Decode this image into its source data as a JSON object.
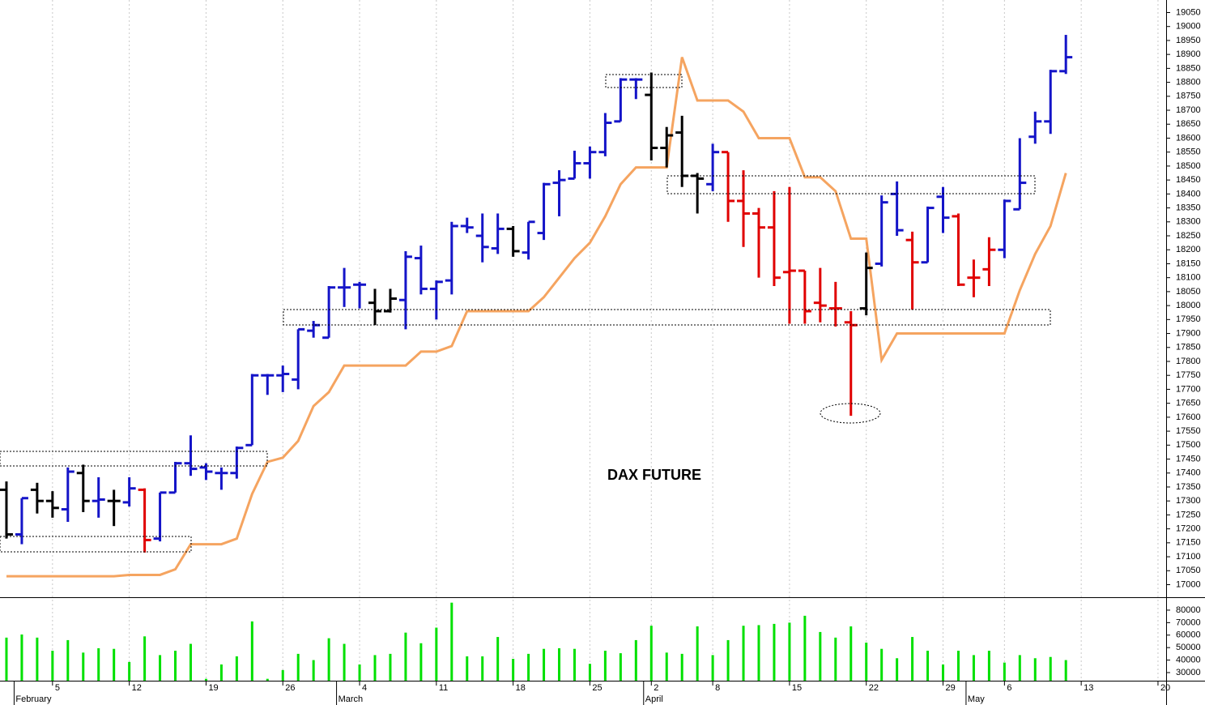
{
  "chart_data": [
    {
      "type": "ohlc",
      "title": "DAX FUTURE",
      "open": [
        17340,
        17180,
        17340,
        17300,
        17270,
        17400,
        17300,
        17300,
        17295,
        17340,
        17165,
        17330,
        17435,
        17420,
        17400,
        17400,
        17500,
        17750,
        17750,
        17735,
        17910,
        17885,
        18065,
        18075,
        18010,
        17980,
        18020,
        18170,
        18060,
        18090,
        18285,
        18250,
        18205,
        18275,
        18190,
        18260,
        18440,
        18455,
        18510,
        18550,
        18660,
        18810,
        18755,
        18565,
        18620,
        18465,
        18435,
        18550,
        18375,
        18330,
        18280,
        18120,
        18125,
        18010,
        17990,
        17940,
        17990,
        18150,
        18400,
        18235,
        18155,
        18390,
        18320,
        18100,
        18130,
        18200,
        18345,
        18605,
        18660,
        18840
      ],
      "high": [
        17370,
        17310,
        17365,
        17335,
        17420,
        17430,
        17385,
        17340,
        17385,
        17345,
        17330,
        17440,
        17535,
        17435,
        17420,
        17495,
        17755,
        17755,
        17785,
        17915,
        17945,
        18070,
        18135,
        18085,
        18060,
        18060,
        18195,
        18215,
        18090,
        18300,
        18315,
        18330,
        18330,
        18285,
        18300,
        18440,
        18485,
        18555,
        18570,
        18690,
        18815,
        18815,
        18835,
        18640,
        18680,
        18475,
        18580,
        18550,
        18485,
        18350,
        18410,
        18425,
        18125,
        18135,
        18085,
        17980,
        18190,
        18395,
        18445,
        18265,
        18355,
        18425,
        18330,
        18165,
        18245,
        18380,
        18600,
        18695,
        18845,
        18970
      ],
      "low": [
        17165,
        17145,
        17255,
        17240,
        17225,
        17260,
        17240,
        17210,
        17280,
        17115,
        17155,
        17330,
        17390,
        17375,
        17340,
        17380,
        17500,
        17680,
        17690,
        17700,
        17885,
        17885,
        17995,
        17990,
        17930,
        17975,
        17915,
        18040,
        17950,
        18040,
        18260,
        18155,
        18185,
        18175,
        18165,
        18235,
        18320,
        18455,
        18455,
        18535,
        18660,
        18740,
        18520,
        18495,
        18425,
        18330,
        18410,
        18300,
        18210,
        18100,
        18070,
        17935,
        17935,
        17940,
        17925,
        17605,
        17965,
        18140,
        18250,
        17985,
        18155,
        18260,
        18070,
        18030,
        18070,
        18170,
        18345,
        18580,
        18615,
        18830
      ],
      "close": [
        17180,
        17310,
        17300,
        17275,
        17405,
        17300,
        17305,
        17300,
        17345,
        17160,
        17330,
        17435,
        17415,
        17405,
        17400,
        17490,
        17750,
        17750,
        17755,
        17915,
        17930,
        18065,
        18065,
        18075,
        17980,
        18025,
        18175,
        18060,
        18085,
        18285,
        18280,
        18210,
        18275,
        18195,
        18300,
        18435,
        18450,
        18510,
        18550,
        18655,
        18810,
        18810,
        18565,
        18610,
        18465,
        18455,
        18550,
        18375,
        18330,
        18280,
        18100,
        18125,
        17980,
        18000,
        17990,
        17930,
        18135,
        18370,
        18270,
        18155,
        18350,
        18315,
        18075,
        18100,
        18200,
        18375,
        18440,
        18660,
        18840,
        18890
      ],
      "bar_colors": [
        "#000000",
        "#1414c8",
        "#000000",
        "#000000",
        "#1414c8",
        "#000000",
        "#1414c8",
        "#000000",
        "#1414c8",
        "#e00000",
        "#1414c8",
        "#1414c8",
        "#1414c8",
        "#1414c8",
        "#1414c8",
        "#1414c8",
        "#1414c8",
        "#1414c8",
        "#1414c8",
        "#1414c8",
        "#1414c8",
        "#1414c8",
        "#1414c8",
        "#1414c8",
        "#000000",
        "#000000",
        "#1414c8",
        "#1414c8",
        "#1414c8",
        "#1414c8",
        "#1414c8",
        "#1414c8",
        "#1414c8",
        "#000000",
        "#1414c8",
        "#1414c8",
        "#1414c8",
        "#1414c8",
        "#1414c8",
        "#1414c8",
        "#1414c8",
        "#1414c8",
        "#000000",
        "#000000",
        "#000000",
        "#000000",
        "#1414c8",
        "#e00000",
        "#e00000",
        "#e00000",
        "#e00000",
        "#e00000",
        "#e00000",
        "#e00000",
        "#e00000",
        "#e00000",
        "#000000",
        "#1414c8",
        "#1414c8",
        "#e00000",
        "#1414c8",
        "#1414c8",
        "#e00000",
        "#e00000",
        "#e00000",
        "#1414c8",
        "#1414c8",
        "#1414c8",
        "#1414c8",
        "#1414c8"
      ],
      "line": {
        "color": "#f5a460",
        "values": [
          17030,
          17030,
          17030,
          17030,
          17030,
          17030,
          17030,
          17030,
          17035,
          17035,
          17035,
          17055,
          17145,
          17145,
          17145,
          17165,
          17325,
          17440,
          17455,
          17515,
          17640,
          17690,
          17785,
          17785,
          17785,
          17785,
          17785,
          17835,
          17835,
          17855,
          17980,
          17980,
          17980,
          17980,
          17980,
          18030,
          18100,
          18170,
          18225,
          18320,
          18435,
          18495,
          18495,
          18495,
          18890,
          18735,
          18735,
          18735,
          18695,
          18600,
          18600,
          18600,
          18460,
          18460,
          18410,
          18240,
          18240,
          17805,
          17900,
          17900,
          17900,
          17900,
          17900,
          17900,
          17900,
          17900,
          18055,
          18185,
          18285,
          18475
        ]
      },
      "xlim": [
        -0.42,
        75.53
      ],
      "ylim": [
        16955,
        19095
      ],
      "yticks": [
        17000,
        17050,
        17100,
        17150,
        17200,
        17250,
        17300,
        17350,
        17400,
        17450,
        17500,
        17550,
        17600,
        17650,
        17700,
        17750,
        17800,
        17850,
        17900,
        17950,
        18000,
        18050,
        18100,
        18150,
        18200,
        18250,
        18300,
        18350,
        18400,
        18450,
        18500,
        18550,
        18600,
        18650,
        18700,
        18750,
        18800,
        18850,
        18900,
        18950,
        19000,
        19050
      ]
    },
    {
      "type": "volume",
      "color": "#00e000",
      "values": [
        58000,
        60500,
        58000,
        47500,
        56000,
        46000,
        49500,
        49000,
        38500,
        59000,
        44000,
        47500,
        53000,
        25000,
        36500,
        43000,
        71000,
        25000,
        32000,
        45000,
        40000,
        57500,
        53000,
        36500,
        44000,
        45000,
        62000,
        53500,
        66000,
        86000,
        43000,
        43000,
        58500,
        41000,
        45000,
        49000,
        49500,
        49000,
        37000,
        47500,
        45500,
        56000,
        67500,
        46000,
        45000,
        67000,
        44000,
        56000,
        67500,
        68000,
        69000,
        70000,
        75500,
        62500,
        58000,
        67000,
        54000,
        49000,
        41500,
        58500,
        47500,
        36500,
        47500,
        44000,
        47500,
        38000,
        44000,
        41500,
        42500,
        40000
      ],
      "xlim": [
        -0.42,
        75.53
      ],
      "ylim": [
        23500,
        89700
      ],
      "yticks": [
        30000,
        40000,
        50000,
        60000,
        70000,
        80000
      ],
      "xticks": [
        {
          "value": 3,
          "label": "5"
        },
        {
          "value": 8,
          "label": "12"
        },
        {
          "value": 13,
          "label": "19"
        },
        {
          "value": 18,
          "label": "26"
        },
        {
          "value": 23,
          "label": "4"
        },
        {
          "value": 28,
          "label": "11"
        },
        {
          "value": 33,
          "label": "18"
        },
        {
          "value": 38,
          "label": "25"
        },
        {
          "value": 42,
          "label": "2"
        },
        {
          "value": 46,
          "label": "8"
        },
        {
          "value": 51,
          "label": "15"
        },
        {
          "value": 56,
          "label": "22"
        },
        {
          "value": 61,
          "label": "29"
        },
        {
          "value": 65,
          "label": "6"
        },
        {
          "value": 70,
          "label": "13"
        },
        {
          "value": 75,
          "label": "20"
        }
      ],
      "month_ticks": [
        {
          "value": 1,
          "label": "February"
        },
        {
          "value": 22,
          "label": "March"
        },
        {
          "value": 42,
          "label": "April"
        },
        {
          "value": 63,
          "label": "May"
        }
      ]
    }
  ]
}
